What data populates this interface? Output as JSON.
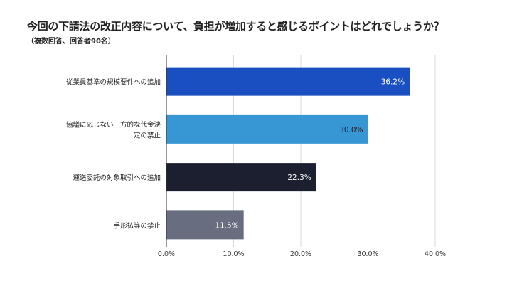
{
  "chart_data": {
    "type": "bar",
    "orientation": "horizontal",
    "title": "今回の下請法の改正内容について、負担が増加すると感じるポイントはどれでしょうか？",
    "subtitle": "（複数回答、回答者90名）",
    "categories": [
      "従業員基準の規模要件への追加",
      "協議に応じない一方的な代金決定の禁止",
      "運送委託の対象取引への追加",
      "手形払等の禁止"
    ],
    "category_lines": [
      [
        "従業員基準の規模要件への追加"
      ],
      [
        "協議に応じない一方的な代金決",
        "定の禁止"
      ],
      [
        "運送委託の対象取引への追加"
      ],
      [
        "手形払等の禁止"
      ]
    ],
    "values": [
      36.2,
      30.0,
      22.3,
      11.5
    ],
    "data_labels": [
      "36.2%",
      "30.0%",
      "22.3%",
      "11.5%"
    ],
    "bar_colors": [
      "#1a4fc1",
      "#3797d5",
      "#1b1f2f",
      "#686d80"
    ],
    "label_colors": [
      "#ffffff",
      "#1b1f2f",
      "#ffffff",
      "#ffffff"
    ],
    "xlim": [
      0,
      40
    ],
    "xticks": [
      0,
      10,
      20,
      30,
      40
    ],
    "xtick_labels": [
      "0.0%",
      "10.0%",
      "20.0%",
      "30.0%",
      "40.0%"
    ],
    "grid": true,
    "legend": "none"
  }
}
